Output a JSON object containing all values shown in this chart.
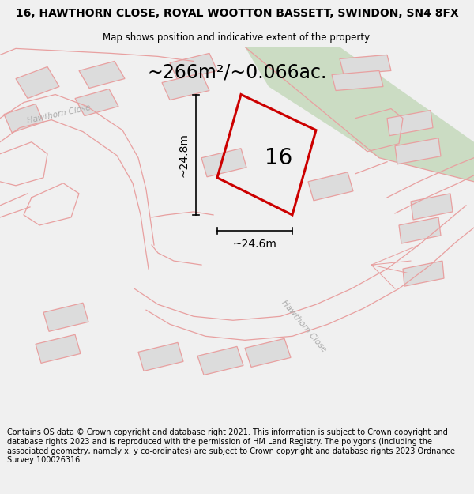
{
  "title": "16, HAWTHORN CLOSE, ROYAL WOOTTON BASSETT, SWINDON, SN4 8FX",
  "subtitle": "Map shows position and indicative extent of the property.",
  "footer": "Contains OS data © Crown copyright and database right 2021. This information is subject to Crown copyright and database rights 2023 and is reproduced with the permission of HM Land Registry. The polygons (including the associated geometry, namely x, y co-ordinates) are subject to Crown copyright and database rights 2023 Ordnance Survey 100026316.",
  "area_label": "~266m²/~0.066ac.",
  "number_label": "16",
  "dim_h_label": "~24.8m",
  "dim_w_label": "~24.6m",
  "bg_color": "#f0f0f0",
  "map_bg": "#ffffff",
  "building_fill": "#dcdcdc",
  "pink_line": "#e8a0a0",
  "red_outline": "#cc0000",
  "green_fill": "#c5d9bc",
  "title_fontsize": 10,
  "subtitle_fontsize": 8.5,
  "footer_fontsize": 7,
  "area_fontsize": 17,
  "number_fontsize": 20,
  "dim_fontsize": 10
}
